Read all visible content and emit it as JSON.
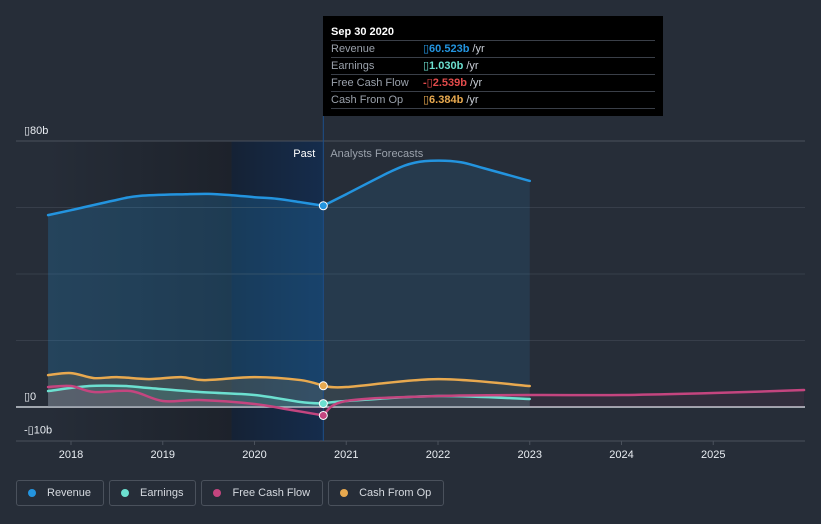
{
  "tooltip": {
    "date": "Sep 30 2020",
    "rows": [
      {
        "label": "Revenue",
        "value": "▯60.523b",
        "unit": "/yr",
        "color": "#2394df"
      },
      {
        "label": "Earnings",
        "value": "▯1.030b",
        "unit": "/yr",
        "color": "#6ce0d0"
      },
      {
        "label": "Free Cash Flow",
        "value": "-▯2.539b",
        "unit": "/yr",
        "color": "#e24b4b"
      },
      {
        "label": "Cash From Op",
        "value": "▯6.384b",
        "unit": "/yr",
        "color": "#e8a94f"
      }
    ]
  },
  "regions": {
    "past_label": "Past",
    "forecast_label": "Analysts Forecasts"
  },
  "legend": [
    {
      "label": "Revenue",
      "color": "#2394df"
    },
    {
      "label": "Earnings",
      "color": "#6ce0d0"
    },
    {
      "label": "Free Cash Flow",
      "color": "#c4457f"
    },
    {
      "label": "Cash From Op",
      "color": "#e8a94f"
    }
  ],
  "chart_data": {
    "type": "line",
    "title": "",
    "xlabel": "",
    "ylabel": "",
    "currency_glyph": "▯",
    "x_ticks": [
      "2018",
      "2019",
      "2020",
      "2021",
      "2022",
      "2023",
      "2024",
      "2025"
    ],
    "y_ticks": [
      {
        "value": 80,
        "label": "▯80b"
      },
      {
        "value": 0,
        "label": "▯0"
      },
      {
        "value": -10,
        "label": "-▯10b"
      }
    ],
    "gridlines_b": [
      80,
      60,
      40,
      20,
      0
    ],
    "xlim": [
      2017.4,
      2025.99
    ],
    "ylim": [
      -10,
      80
    ],
    "units": "billions",
    "past_end": 2020.75,
    "highlight_start": 2019.75,
    "series": [
      {
        "name": "Revenue",
        "color": "#2394df",
        "area": true,
        "past": [
          [
            2017.75,
            57.7
          ],
          [
            2018.0,
            59.2
          ],
          [
            2018.5,
            62.3
          ],
          [
            2018.75,
            63.5
          ],
          [
            2019.25,
            64.0
          ],
          [
            2019.5,
            64.1
          ],
          [
            2019.75,
            63.7
          ],
          [
            2020.0,
            63.1
          ],
          [
            2020.25,
            62.6
          ],
          [
            2020.5,
            61.6
          ],
          [
            2020.75,
            60.52
          ]
        ],
        "forecast": [
          [
            2020.75,
            60.52
          ],
          [
            2021.0,
            64.0
          ],
          [
            2021.5,
            71.0
          ],
          [
            2021.75,
            73.5
          ],
          [
            2022.0,
            74.1
          ],
          [
            2022.25,
            73.6
          ],
          [
            2022.5,
            71.8
          ],
          [
            2023.0,
            68.0
          ]
        ]
      },
      {
        "name": "Cash From Op",
        "color": "#e8a94f",
        "area": true,
        "past": [
          [
            2017.75,
            9.6
          ],
          [
            2018.0,
            10.2
          ],
          [
            2018.25,
            8.7
          ],
          [
            2018.5,
            9.0
          ],
          [
            2018.85,
            8.4
          ],
          [
            2019.2,
            9.0
          ],
          [
            2019.45,
            8.1
          ],
          [
            2020.0,
            9.0
          ],
          [
            2020.5,
            8.1
          ],
          [
            2020.75,
            6.38
          ]
        ],
        "forecast": [
          [
            2020.75,
            6.38
          ],
          [
            2021.0,
            6.0
          ],
          [
            2022.0,
            8.4
          ],
          [
            2023.0,
            6.3
          ]
        ]
      },
      {
        "name": "Earnings",
        "color": "#6ce0d0",
        "area": true,
        "past": [
          [
            2017.75,
            4.8
          ],
          [
            2018.2,
            6.3
          ],
          [
            2018.6,
            6.3
          ],
          [
            2018.85,
            5.7
          ],
          [
            2019.4,
            4.5
          ],
          [
            2020.0,
            3.6
          ],
          [
            2020.5,
            1.5
          ],
          [
            2020.75,
            1.03
          ]
        ],
        "forecast": [
          [
            2020.75,
            1.03
          ],
          [
            2021.0,
            1.8
          ],
          [
            2022.0,
            3.3
          ],
          [
            2023.0,
            2.4
          ]
        ]
      },
      {
        "name": "Free Cash Flow",
        "color": "#c4457f",
        "area": true,
        "past": [
          [
            2017.75,
            6.0
          ],
          [
            2018.0,
            6.3
          ],
          [
            2018.25,
            4.5
          ],
          [
            2018.65,
            4.8
          ],
          [
            2019.0,
            1.8
          ],
          [
            2019.4,
            2.1
          ],
          [
            2020.0,
            0.9
          ],
          [
            2020.4,
            -0.9
          ],
          [
            2020.75,
            -2.54
          ]
        ],
        "forecast": [
          [
            2020.75,
            -2.54
          ],
          [
            2021.0,
            1.8
          ],
          [
            2022.0,
            3.3
          ],
          [
            2023.0,
            3.6
          ],
          [
            2024.0,
            3.6
          ],
          [
            2025.0,
            4.2
          ],
          [
            2025.99,
            5.1
          ]
        ]
      }
    ],
    "markers_at": 2020.75,
    "marker_values": {
      "Revenue": 60.523,
      "Earnings": 1.03,
      "Free Cash Flow": -2.539,
      "Cash From Op": 6.384
    }
  }
}
